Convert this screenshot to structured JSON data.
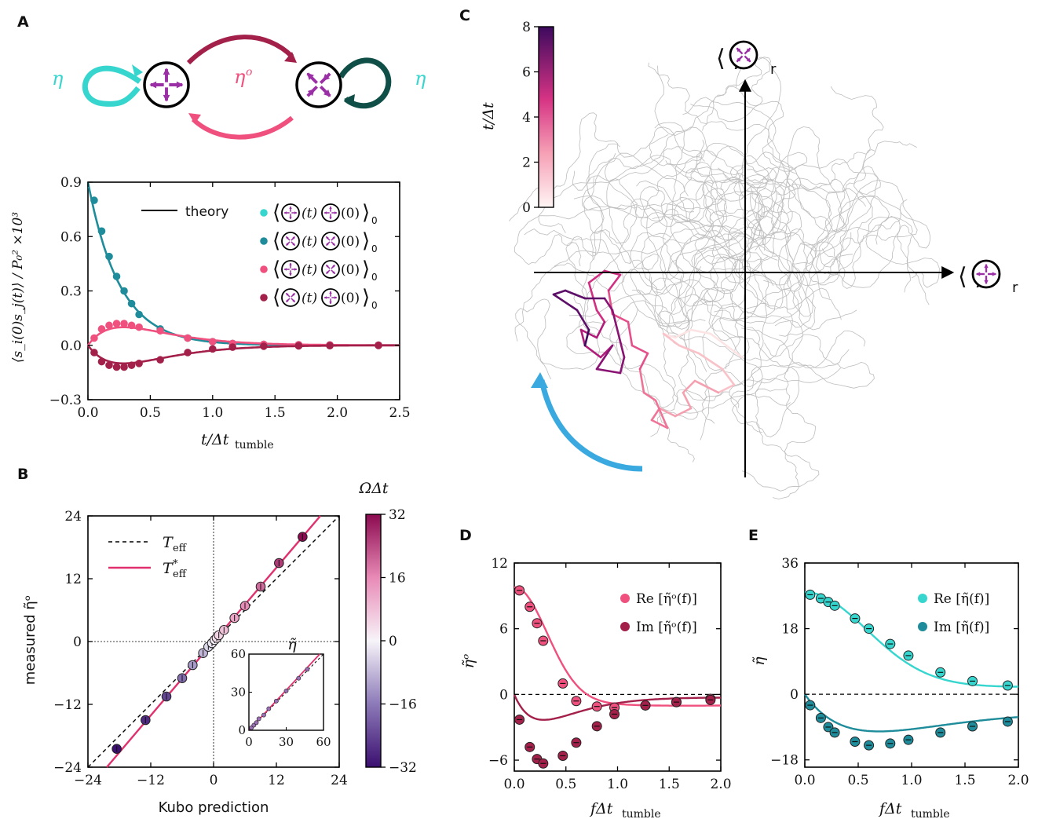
{
  "panels": {
    "a": "A",
    "b": "B",
    "c": "C",
    "d": "D",
    "e": "E"
  },
  "colors": {
    "cyan": "#36d6cf",
    "teal": "#1e8c9a",
    "pink": "#f0507e",
    "crimson": "#a3204a",
    "magenta": "#e0306e",
    "darkgreen": "#0f4f47",
    "purple": "#9b2fa6",
    "blue": "#39a9e0",
    "gray": "#bdbdbd"
  },
  "diagram_a": {
    "eta_left": "η",
    "eta_right": "η",
    "eta_odd": "η",
    "eta_odd_sup": "o"
  },
  "chart_data": [
    {
      "id": "A",
      "type": "line",
      "xlabel": "t/Δt",
      "xlabel_sub": "tumble",
      "ylabel": "⟨s_i(0)s_j(t)⟩ / P₀² ×10³",
      "xlim": [
        0,
        2.5
      ],
      "ylim": [
        -0.3,
        0.9
      ],
      "xticks": [
        "0.0",
        "0.5",
        "1.0",
        "1.5",
        "2.0",
        "2.5"
      ],
      "yticks": [
        "−0.3",
        "0.0",
        "0.3",
        "0.6",
        "0.9"
      ],
      "legend_theory": "theory",
      "legend_entries": [
        "(t)",
        "(t)",
        "(t)",
        "(t)"
      ],
      "legend_subscript": "0",
      "series": [
        {
          "color": "#36d6cf",
          "x": [
            0.05,
            0.11,
            0.17,
            0.23,
            0.29,
            0.35,
            0.41,
            0.58,
            0.8,
            1.0,
            1.16,
            1.41,
            1.69,
            1.94,
            2.33
          ],
          "y": [
            0.8,
            0.63,
            0.49,
            0.38,
            0.3,
            0.23,
            0.17,
            0.09,
            0.04,
            0.02,
            0.01,
            0.005,
            0.003,
            0.002,
            0.001
          ]
        },
        {
          "color": "#1e8c9a",
          "x": [
            0.05,
            0.11,
            0.17,
            0.23,
            0.29,
            0.35,
            0.41,
            0.58,
            0.8,
            1.0,
            1.16,
            1.41,
            1.69,
            1.94,
            2.33
          ],
          "y": [
            0.8,
            0.63,
            0.49,
            0.38,
            0.3,
            0.23,
            0.17,
            0.09,
            0.04,
            0.02,
            0.01,
            0.005,
            0.003,
            0.002,
            0.001
          ]
        },
        {
          "color": "#f0507e",
          "x": [
            0.05,
            0.11,
            0.17,
            0.23,
            0.29,
            0.35,
            0.41,
            0.58,
            0.8,
            1.0,
            1.16,
            1.41,
            1.69,
            1.94,
            2.33
          ],
          "y": [
            0.04,
            0.09,
            0.11,
            0.12,
            0.12,
            0.11,
            0.1,
            0.08,
            0.04,
            0.02,
            0.01,
            0.005,
            0.003,
            0.002,
            0.001
          ]
        },
        {
          "color": "#a3204a",
          "x": [
            0.05,
            0.11,
            0.17,
            0.23,
            0.29,
            0.35,
            0.41,
            0.58,
            0.8,
            1.0,
            1.16,
            1.41,
            1.69,
            1.94,
            2.33
          ],
          "y": [
            -0.04,
            -0.09,
            -0.11,
            -0.12,
            -0.12,
            -0.11,
            -0.1,
            -0.08,
            -0.04,
            -0.02,
            -0.01,
            -0.005,
            -0.003,
            -0.002,
            -0.001
          ]
        }
      ]
    },
    {
      "id": "B",
      "type": "scatter",
      "xlabel": "Kubo prediction",
      "ylabel": "measured η̃ᵒ",
      "xlim": [
        -24,
        24
      ],
      "ylim": [
        -24,
        24
      ],
      "xticks": [
        "−24",
        "−12",
        "0",
        "12",
        "24"
      ],
      "yticks": [
        "−24",
        "−12",
        "0",
        "12",
        "24"
      ],
      "legend": [
        "T",
        "T"
      ],
      "legend_subs": [
        "eff",
        "eff"
      ],
      "legend_star": "*",
      "colorbar_label": "ΩΔt",
      "colorbar_ticks": [
        "32",
        "16",
        "0",
        "−16",
        "−32"
      ],
      "colorbar_range": [
        -32,
        32
      ],
      "points": [
        {
          "x": -18.5,
          "y": -20.5,
          "omega": -32
        },
        {
          "x": -13.0,
          "y": -15.0,
          "omega": -28
        },
        {
          "x": -9.0,
          "y": -10.5,
          "omega": -24
        },
        {
          "x": -6.0,
          "y": -7.0,
          "omega": -18
        },
        {
          "x": -4.0,
          "y": -4.5,
          "omega": -12
        },
        {
          "x": -2.0,
          "y": -2.2,
          "omega": -8
        },
        {
          "x": -1.0,
          "y": -1.0,
          "omega": -4
        },
        {
          "x": -0.3,
          "y": -0.3,
          "omega": -2
        },
        {
          "x": 0.2,
          "y": 0.3,
          "omega": 1
        },
        {
          "x": 0.6,
          "y": 0.7,
          "omega": 3
        },
        {
          "x": 1.0,
          "y": 1.2,
          "omega": 5
        },
        {
          "x": 2.0,
          "y": 2.2,
          "omega": 8
        },
        {
          "x": 4.0,
          "y": 4.5,
          "omega": 12
        },
        {
          "x": 6.0,
          "y": 6.8,
          "omega": 16
        },
        {
          "x": 9.0,
          "y": 10.5,
          "omega": 20
        },
        {
          "x": 12.5,
          "y": 15.0,
          "omega": 26
        },
        {
          "x": 17.0,
          "y": 20.0,
          "omega": 32
        }
      ],
      "inset": {
        "label": "η̃",
        "xlim": [
          0,
          60
        ],
        "ylim": [
          0,
          60
        ],
        "xticks": [
          "0",
          "30",
          "60"
        ],
        "yticks": [
          "0",
          "30",
          "60"
        ],
        "points": [
          [
            2,
            2
          ],
          [
            4,
            4
          ],
          [
            6,
            6
          ],
          [
            8,
            9
          ],
          [
            12,
            12
          ],
          [
            16,
            17
          ],
          [
            22,
            23
          ],
          [
            30,
            31
          ],
          [
            40,
            41
          ],
          [
            47,
            48
          ]
        ]
      }
    },
    {
      "id": "C",
      "type": "line",
      "colorbar_label": "t/Δt",
      "colorbar_ticks": [
        "8",
        "6",
        "4",
        "2",
        "0"
      ],
      "colorbar_range": [
        0,
        8
      ],
      "xaxis_label": "⟨ ⟩",
      "xaxis_sub": "r",
      "yaxis_label": "⟨ ⟩",
      "yaxis_sub": "r"
    },
    {
      "id": "D",
      "type": "line",
      "xlabel": "fΔt",
      "xlabel_sub": "tumble",
      "ylabel": "η̃ᵒ",
      "xlim": [
        0,
        2.0
      ],
      "ylim": [
        -7,
        12
      ],
      "xticks": [
        "0.0",
        "0.5",
        "1.0",
        "1.5",
        "2.0"
      ],
      "yticks": [
        "−6",
        "0",
        "6",
        "12"
      ],
      "legend": [
        "Re [η̃ᵒ(f)]",
        "Im [η̃ᵒ(f)]"
      ],
      "series": [
        {
          "name": "Re [η̃ᵒ(f)]",
          "color": "#f0507e",
          "x": [
            0.05,
            0.15,
            0.22,
            0.28,
            0.47,
            0.6,
            0.8,
            0.97,
            1.27,
            1.57,
            1.9
          ],
          "y": [
            9.5,
            8.0,
            6.5,
            4.9,
            1.0,
            -0.6,
            -1.1,
            -1.2,
            -1.0,
            -0.7,
            -0.4
          ]
        },
        {
          "name": "Im [η̃ᵒ(f)]",
          "color": "#a3204a",
          "x": [
            0.05,
            0.15,
            0.22,
            0.28,
            0.47,
            0.6,
            0.8,
            0.97,
            1.27,
            1.57,
            1.9
          ],
          "y": [
            -2.3,
            -4.8,
            -5.9,
            -6.3,
            -5.6,
            -4.4,
            -2.9,
            -1.8,
            -1.0,
            -0.7,
            -0.5
          ]
        }
      ]
    },
    {
      "id": "E",
      "type": "line",
      "xlabel": "fΔt",
      "xlabel_sub": "tumble",
      "ylabel": "η̃",
      "xlim": [
        0,
        2.0
      ],
      "ylim": [
        -20,
        36
      ],
      "xticks": [
        "0.0",
        "0.5",
        "1.0",
        "1.5",
        "2.0"
      ],
      "yticks": [
        "−18",
        "0",
        "18",
        "36"
      ],
      "legend": [
        "Re [η̃(f)]",
        "Im [η̃(f)]"
      ],
      "series": [
        {
          "name": "Re [η̃(f)]",
          "color": "#36d6cf",
          "x": [
            0.05,
            0.15,
            0.22,
            0.28,
            0.47,
            0.6,
            0.8,
            0.97,
            1.27,
            1.57,
            1.9
          ],
          "y": [
            27.3,
            26.3,
            25.3,
            24.3,
            20.8,
            18.0,
            13.8,
            10.6,
            6.0,
            3.6,
            2.4
          ]
        },
        {
          "name": "Im [η̃(f)]",
          "color": "#1e8c9a",
          "x": [
            0.05,
            0.15,
            0.22,
            0.28,
            0.47,
            0.6,
            0.8,
            0.97,
            1.27,
            1.57,
            1.9
          ],
          "y": [
            -3.0,
            -6.5,
            -9.0,
            -10.5,
            -13.0,
            -14.0,
            -13.5,
            -12.5,
            -10.5,
            -8.8,
            -7.5
          ]
        }
      ]
    }
  ]
}
